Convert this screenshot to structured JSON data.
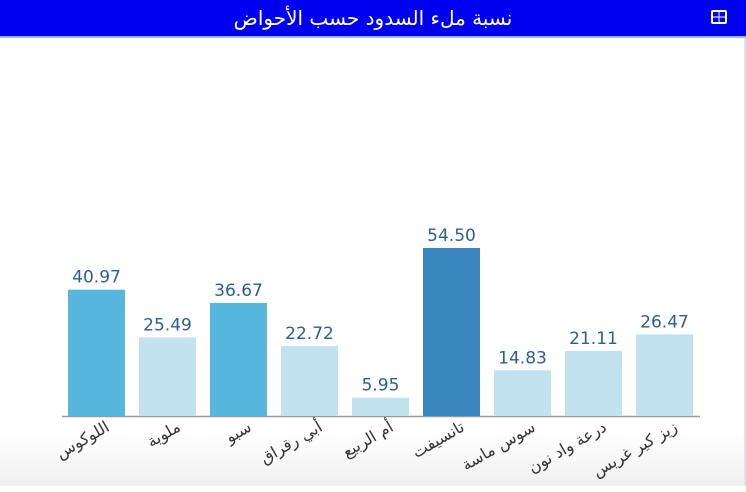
{
  "header": {
    "title": "نسبة ملء السدود حسب الأحواض",
    "icon": "table-icon"
  },
  "chart_data": {
    "type": "bar",
    "title": "نسبة ملء السدود حسب الأحواض",
    "categories": [
      "اللوكوس",
      "ملوية",
      "سبو",
      "أبي رقراق",
      "أم الربيع",
      "تانسيفت",
      "سوس ماسة",
      "درعة واد نون",
      "زيز كير غريس"
    ],
    "values": [
      40.97,
      25.49,
      36.67,
      22.72,
      5.95,
      54.5,
      14.83,
      21.11,
      26.47
    ],
    "value_labels": [
      "40.97",
      "25.49",
      "36.67",
      "22.72",
      "5.95",
      "54.50",
      "14.83",
      "21.11",
      "26.47"
    ],
    "colors": [
      "#56b6de",
      "#c3e2ef",
      "#56b6de",
      "#c3e2ef",
      "#c3e2ef",
      "#3a86bf",
      "#c3e2ef",
      "#c3e2ef",
      "#c3e2ef"
    ],
    "ylim": [
      0,
      60
    ],
    "grid": false,
    "xlabel": "",
    "ylabel": ""
  }
}
